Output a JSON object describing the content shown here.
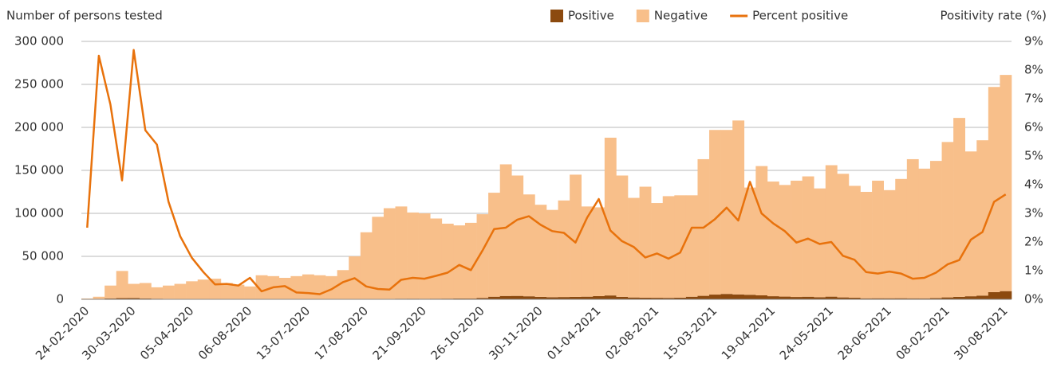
{
  "chart_data": {
    "type": "bar",
    "stacked": true,
    "y_label": "Number of persons tested",
    "y2_label": "Positivity rate (%)",
    "categories": [
      "24-02-2020",
      null,
      null,
      null,
      "30-03-2020",
      null,
      null,
      null,
      null,
      "05-04-2020",
      null,
      null,
      null,
      null,
      "06-08-2020",
      null,
      null,
      null,
      null,
      "13-07-2020",
      null,
      null,
      null,
      null,
      "17-08-2020",
      null,
      null,
      null,
      null,
      "21-09-2020",
      null,
      null,
      null,
      null,
      "26-10-2020",
      null,
      null,
      null,
      null,
      "30-11-2020",
      null,
      null,
      null,
      null,
      "01-04-2021",
      null,
      null,
      null,
      null,
      "02-08-2021",
      null,
      null,
      null,
      null,
      "15-03-2021",
      null,
      null,
      null,
      null,
      "19-04-2021",
      null,
      null,
      null,
      null,
      "24-05-2021",
      null,
      null,
      null,
      null,
      "28-06-2021",
      null,
      null,
      null,
      null,
      "08-02-2021",
      null,
      null,
      null,
      null,
      "30-08-2021"
    ],
    "series": [
      {
        "name": "Positive",
        "color": "#8c4a0f",
        "values": [
          30,
          250,
          1100,
          1400,
          1600,
          1100,
          750,
          550,
          400,
          300,
          220,
          120,
          100,
          80,
          110,
          80,
          110,
          120,
          60,
          60,
          50,
          90,
          200,
          370,
          350,
          350,
          360,
          730,
          760,
          720,
          770,
          820,
          1030,
          910,
          1680,
          3040,
          3930,
          4000,
          3540,
          2860,
          2480,
          2670,
          2870,
          3080,
          3750,
          4510,
          2920,
          2160,
          1910,
          1790,
          1700,
          1970,
          3030,
          4080,
          5520,
          6300,
          5720,
          5330,
          4650,
          3630,
          3170,
          2730,
          3030,
          2490,
          3120,
          2220,
          1820,
          1190,
          1240,
          1230,
          1260,
          1170,
          1140,
          1500,
          2230,
          2890,
          3580,
          4350,
          8400,
          9550
        ]
      },
      {
        "name": "Negative",
        "color": "#f8bf8a",
        "values": [
          970,
          2750,
          14900,
          31600,
          16400,
          17900,
          13250,
          15450,
          17600,
          20700,
          22780,
          23880,
          18900,
          16920,
          14890,
          27920,
          26890,
          24880,
          26940,
          28940,
          27950,
          26910,
          33800,
          49630,
          77650,
          95650,
          105640,
          107270,
          100240,
          99280,
          93230,
          87180,
          84970,
          88090,
          97320,
          120960,
          153070,
          140000,
          118460,
          107140,
          101520,
          112330,
          142130,
          104920,
          103250,
          183490,
          141080,
          115840,
          129090,
          110210,
          118300,
          119030,
          117970,
          158920,
          191480,
          190700,
          202280,
          124670,
          150350,
          133370,
          129830,
          135270,
          139970,
          126510,
          152880,
          143780,
          130180,
          123810,
          136760,
          125770,
          138740,
          161830,
          150860,
          159500,
          180770,
          208110,
          168420,
          180650,
          238600,
          251450
        ]
      },
      {
        "name": "Percent positive",
        "color": "#e8720c",
        "type": "line",
        "axis": "y2",
        "values": [
          2.5,
          8.5,
          6.8,
          4.15,
          8.7,
          5.9,
          5.4,
          3.4,
          2.2,
          1.45,
          0.95,
          0.52,
          0.54,
          0.48,
          0.75,
          0.28,
          0.42,
          0.46,
          0.24,
          0.22,
          0.18,
          0.35,
          0.6,
          0.74,
          0.45,
          0.36,
          0.34,
          0.68,
          0.75,
          0.72,
          0.82,
          0.93,
          1.2,
          1.02,
          1.7,
          2.45,
          2.5,
          2.78,
          2.9,
          2.6,
          2.38,
          2.32,
          1.98,
          2.85,
          3.5,
          2.4,
          2.03,
          1.83,
          1.46,
          1.6,
          1.42,
          1.63,
          2.5,
          2.5,
          2.8,
          3.2,
          2.75,
          4.1,
          3.0,
          2.65,
          2.38,
          1.98,
          2.12,
          1.93,
          2.0,
          1.52,
          1.38,
          0.95,
          0.9,
          0.97,
          0.9,
          0.72,
          0.75,
          0.93,
          1.22,
          1.37,
          2.08,
          2.35,
          3.4,
          3.66
        ]
      }
    ],
    "ylim": [
      0,
      300000
    ],
    "yticks": [
      0,
      {
        "value": 50000,
        "label": "50 000"
      },
      {
        "value": 100000,
        "label": "100 000"
      },
      {
        "value": 150000,
        "label": "150 000"
      },
      {
        "value": 200000,
        "label": "200 000"
      },
      {
        "value": 250000,
        "label": "250 000"
      },
      {
        "value": 300000,
        "label": "300 000"
      }
    ],
    "y2lim": [
      0,
      9
    ],
    "y2ticks": [
      {
        "value": 0,
        "label": "0%"
      },
      {
        "value": 1,
        "label": "1%"
      },
      {
        "value": 2,
        "label": "2%"
      },
      {
        "value": 3,
        "label": "3%"
      },
      {
        "value": 4,
        "label": "4%"
      },
      {
        "value": 5,
        "label": "5%"
      },
      {
        "value": 6,
        "label": "6%"
      },
      {
        "value": 7,
        "label": "7%"
      },
      {
        "value": 8,
        "label": "8%"
      },
      {
        "value": 9,
        "label": "9%"
      }
    ],
    "grid": true,
    "legend": "top-right"
  }
}
